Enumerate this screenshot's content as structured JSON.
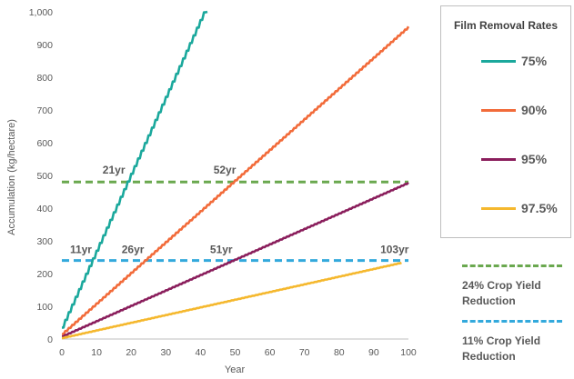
{
  "chart_data": {
    "type": "line",
    "xlabel": "Year",
    "ylabel": "Accumulation (kg/hectare)",
    "xlim": [
      0,
      100
    ],
    "ylim": [
      0,
      1000
    ],
    "x_ticks": [
      "0",
      "10",
      "20",
      "30",
      "40",
      "50",
      "60",
      "70",
      "80",
      "90",
      "100"
    ],
    "y_ticks": [
      "0",
      "100",
      "200",
      "300",
      "400",
      "500",
      "600",
      "700",
      "800",
      "900",
      "1,000"
    ],
    "grid": false,
    "legend": {
      "title": "Film Removal Rates",
      "placement": "right"
    },
    "series": [
      {
        "name": "75%",
        "color": "#1aa89c",
        "rate": 23.5,
        "start": 35,
        "end_year": 42
      },
      {
        "name": "90%",
        "color": "#f26b3a",
        "rate": 9.4,
        "start": 15,
        "end_year": 100
      },
      {
        "name": "95%",
        "color": "#8a1e5c",
        "rate": 4.7,
        "start": 8,
        "end_year": 100
      },
      {
        "name": "97.5%",
        "color": "#f5b82e",
        "rate": 2.35,
        "start": 3,
        "end_year": 98
      }
    ],
    "thresholds": [
      {
        "name": "24% Crop Yield Reduction",
        "label_line1": "24% Crop Yield",
        "label_line2": "Reduction",
        "value": 480,
        "color": "#6aa84f",
        "x_start": 0,
        "x_end": 100
      },
      {
        "name": "11% Crop Yield Reduction",
        "label_line1": "11% Crop Yield",
        "label_line2": "Reduction",
        "value": 240,
        "color": "#33a9dc",
        "x_start": 0,
        "x_end": 100
      }
    ],
    "annotations": [
      {
        "text": "21yr",
        "x": 15,
        "y": 505
      },
      {
        "text": "52yr",
        "x": 47,
        "y": 505
      },
      {
        "text": "11yr",
        "x": 5.5,
        "y": 262
      },
      {
        "text": "26yr",
        "x": 20.5,
        "y": 262
      },
      {
        "text": "51yr",
        "x": 46,
        "y": 262
      },
      {
        "text": "103yr",
        "x": 96,
        "y": 262
      }
    ]
  }
}
